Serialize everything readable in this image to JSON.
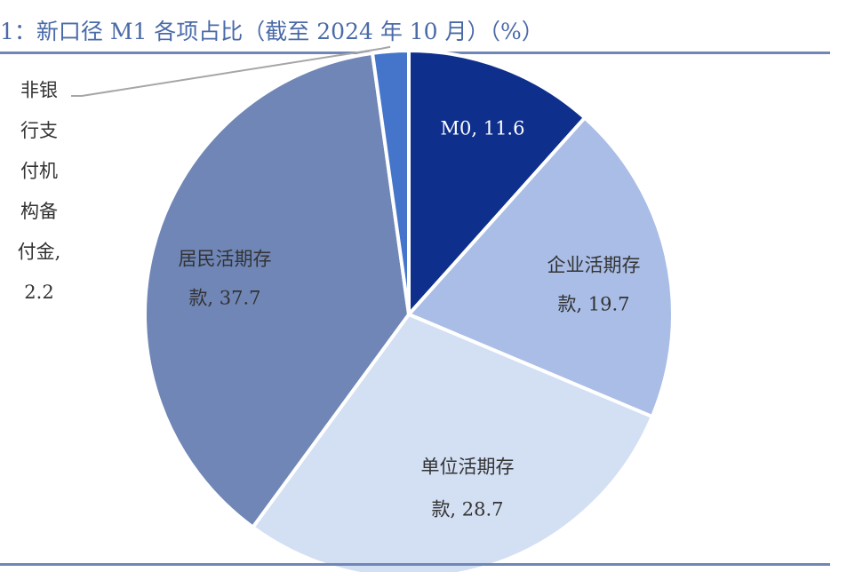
{
  "title": "1：新口径 M1 各项占比（截至 2024 年 10 月）（%）",
  "chart_data": {
    "type": "pie",
    "title": "1：新口径 M1 各项占比（截至 2024 年 10 月）（%）",
    "unit": "%",
    "start_angle_deg": 0,
    "direction": "clockwise",
    "slices": [
      {
        "label": "M0",
        "value": 11.6,
        "color": "#0f2f8c",
        "text_color": "#ffffff",
        "label_lines": [
          "M0, 11.6"
        ]
      },
      {
        "label": "企业活期存款",
        "value": 19.7,
        "color": "#a9bde6",
        "text_color": "#333333",
        "label_lines": [
          "企业活期存",
          "款, 19.7"
        ]
      },
      {
        "label": "单位活期存款",
        "value": 28.7,
        "color": "#d3dff3",
        "text_color": "#333333",
        "label_lines": [
          "单位活期存",
          "款, 28.7"
        ]
      },
      {
        "label": "居民活期存款",
        "value": 37.7,
        "color": "#6f86b6",
        "text_color": "#333333",
        "label_lines": [
          "居民活期存",
          "款, 37.7"
        ]
      },
      {
        "label": "非银行支付机构备付金",
        "value": 2.2,
        "color": "#4475cb",
        "text_color": "#333333",
        "label_lines": [
          "非银",
          "行支",
          "付机",
          "构备",
          "付金,",
          "2.2"
        ]
      }
    ]
  }
}
